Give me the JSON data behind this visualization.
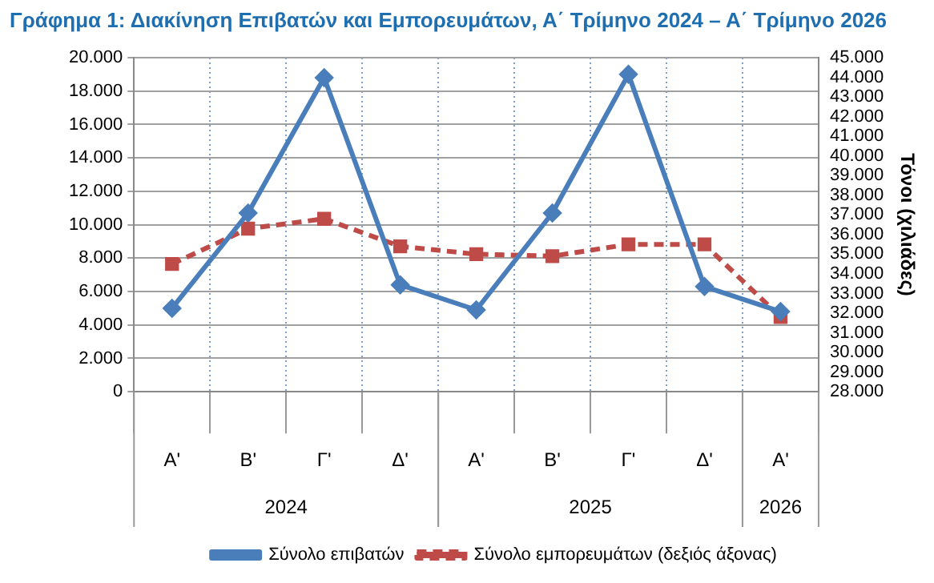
{
  "chart_data": {
    "type": "line",
    "title": "Γράφημα 1: Διακίνηση Επιβατών και Εμπορευμάτων, Α΄ Τρίμηνο 2024 – Α΄ Τρίμηνο 2026",
    "categories": [
      "Α'",
      "Β'",
      "Γ'",
      "Δ'",
      "Α'",
      "Β'",
      "Γ'",
      "Δ'",
      "Α'"
    ],
    "series": [
      {
        "name": "Σύνολο επιβατών",
        "color": "#4a7ebb",
        "values": [
          5000,
          10700,
          18800,
          6400,
          4900,
          10700,
          19000,
          6300,
          4800
        ],
        "marker": "diamond",
        "line_style": "solid"
      },
      {
        "name": "Σύνολο εμπορευμάτων (δεξιός άξονας)",
        "color": "#be4b48",
        "axis": "y2",
        "values": [
          34500,
          36300,
          36800,
          35400,
          35000,
          34900,
          35500,
          35500,
          31800
        ],
        "marker": "square",
        "line_style": "dashed"
      }
    ],
    "ylim": [
      0,
      20000
    ],
    "yticks": [
      {
        "value": 0,
        "label": "0"
      },
      {
        "value": 2000,
        "label": "2.000"
      },
      {
        "value": 4000,
        "label": "4.000"
      },
      {
        "value": 6000,
        "label": "6.000"
      },
      {
        "value": 8000,
        "label": "8.000"
      },
      {
        "value": 10000,
        "label": "10.000"
      },
      {
        "value": 12000,
        "label": "12.000"
      },
      {
        "value": 14000,
        "label": "14.000"
      },
      {
        "value": 16000,
        "label": "16.000"
      },
      {
        "value": 18000,
        "label": "18.000"
      },
      {
        "value": 20000,
        "label": "20.000"
      }
    ],
    "y2lim": [
      28000,
      45000
    ],
    "y2ticks": [
      {
        "value": 28000,
        "label": "28.000"
      },
      {
        "value": 29000,
        "label": "29.000"
      },
      {
        "value": 30000,
        "label": "30.000"
      },
      {
        "value": 31000,
        "label": "31.000"
      },
      {
        "value": 32000,
        "label": "32.000"
      },
      {
        "value": 33000,
        "label": "33.000"
      },
      {
        "value": 34000,
        "label": "34.000"
      },
      {
        "value": 35000,
        "label": "35.000"
      },
      {
        "value": 36000,
        "label": "36.000"
      },
      {
        "value": 37000,
        "label": "37.000"
      },
      {
        "value": 38000,
        "label": "38.000"
      },
      {
        "value": 39000,
        "label": "39.000"
      },
      {
        "value": 40000,
        "label": "40.000"
      },
      {
        "value": 41000,
        "label": "41.000"
      },
      {
        "value": 42000,
        "label": "42.000"
      },
      {
        "value": 43000,
        "label": "43.000"
      },
      {
        "value": 44000,
        "label": "44.000"
      },
      {
        "value": 45000,
        "label": "45.000"
      }
    ],
    "y2label": "Τόνοι (χιλιάδες)",
    "annotations": [
      "2024",
      "2025",
      "2026"
    ],
    "grid": true,
    "legend": "bottom"
  }
}
